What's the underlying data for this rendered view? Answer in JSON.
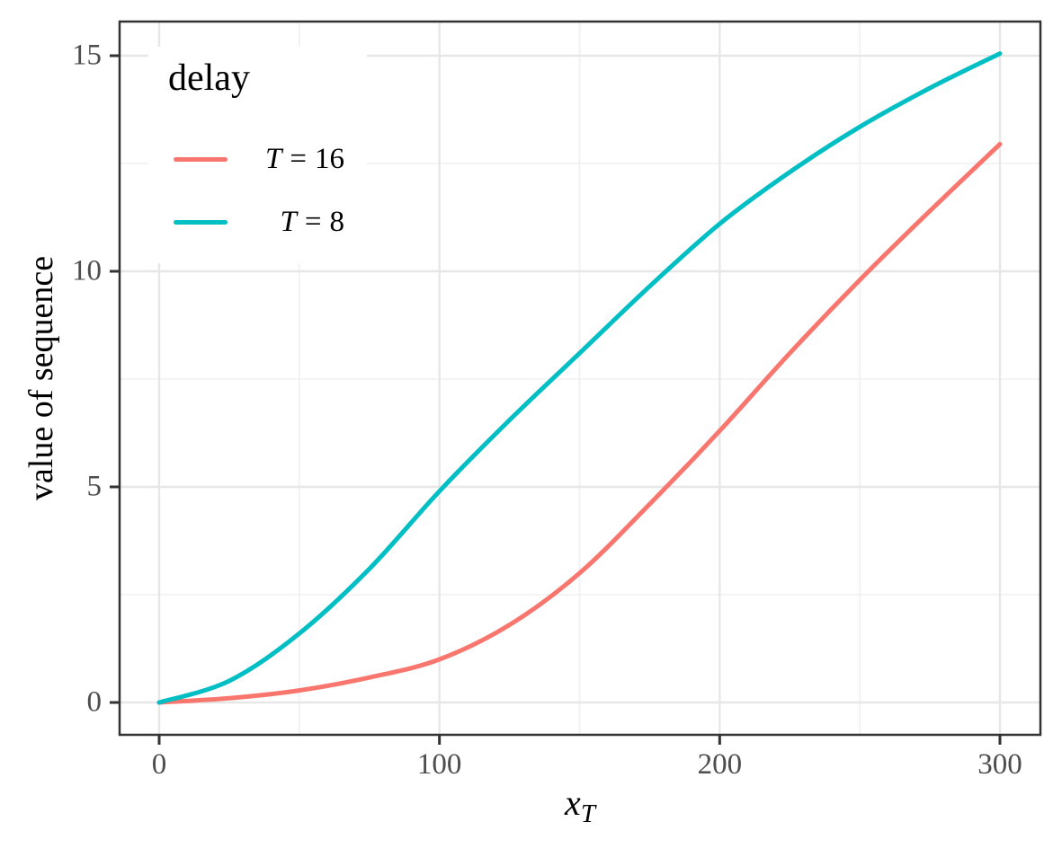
{
  "figure": {
    "background": "#FFFFFF"
  },
  "chart_data": {
    "type": "line",
    "title": "",
    "xlabel_base": "x",
    "xlabel_sub": "T",
    "ylabel": "value of sequence",
    "legend": {
      "title": "delay",
      "position": "inside-top-left",
      "items": [
        {
          "var": "T",
          "eq": "=",
          "val": "16",
          "label": "T = 16",
          "color": "#F8766D"
        },
        {
          "var": "T",
          "eq": "=",
          "val": "8",
          "label": "T = 8",
          "color": "#00BFC4"
        }
      ]
    },
    "xlim": [
      0,
      300
    ],
    "ylim": [
      0,
      15
    ],
    "x_major_ticks": [
      0,
      100,
      200,
      300
    ],
    "x_minor_ticks": [
      50,
      150,
      250
    ],
    "y_major_ticks": [
      0,
      5,
      10,
      15
    ],
    "y_minor_ticks": [
      2.5,
      7.5,
      12.5
    ],
    "x_tick_labels": [
      "0",
      "100",
      "200",
      "300"
    ],
    "y_tick_labels": [
      "0",
      "5",
      "10",
      "15"
    ],
    "grid": {
      "on": true,
      "major_color": "#E7E7E7",
      "minor_color": "#F0F0F0"
    },
    "panel_border_color": "#333333",
    "tick_mark_color": "#333333",
    "tick_label_color": "#4D4D4D",
    "x": [
      0,
      25,
      50,
      75,
      100,
      125,
      150,
      175,
      200,
      225,
      250,
      275,
      300
    ],
    "series": [
      {
        "name": "T = 16",
        "color": "#F8766D",
        "values": [
          0,
          0.1,
          0.28,
          0.58,
          1.0,
          1.8,
          3.0,
          4.6,
          6.3,
          8.1,
          9.8,
          11.4,
          12.95
        ]
      },
      {
        "name": "T = 8",
        "color": "#00BFC4",
        "values": [
          0,
          0.5,
          1.6,
          3.1,
          4.9,
          6.55,
          8.1,
          9.65,
          11.1,
          12.3,
          13.35,
          14.25,
          15.05
        ]
      }
    ]
  }
}
